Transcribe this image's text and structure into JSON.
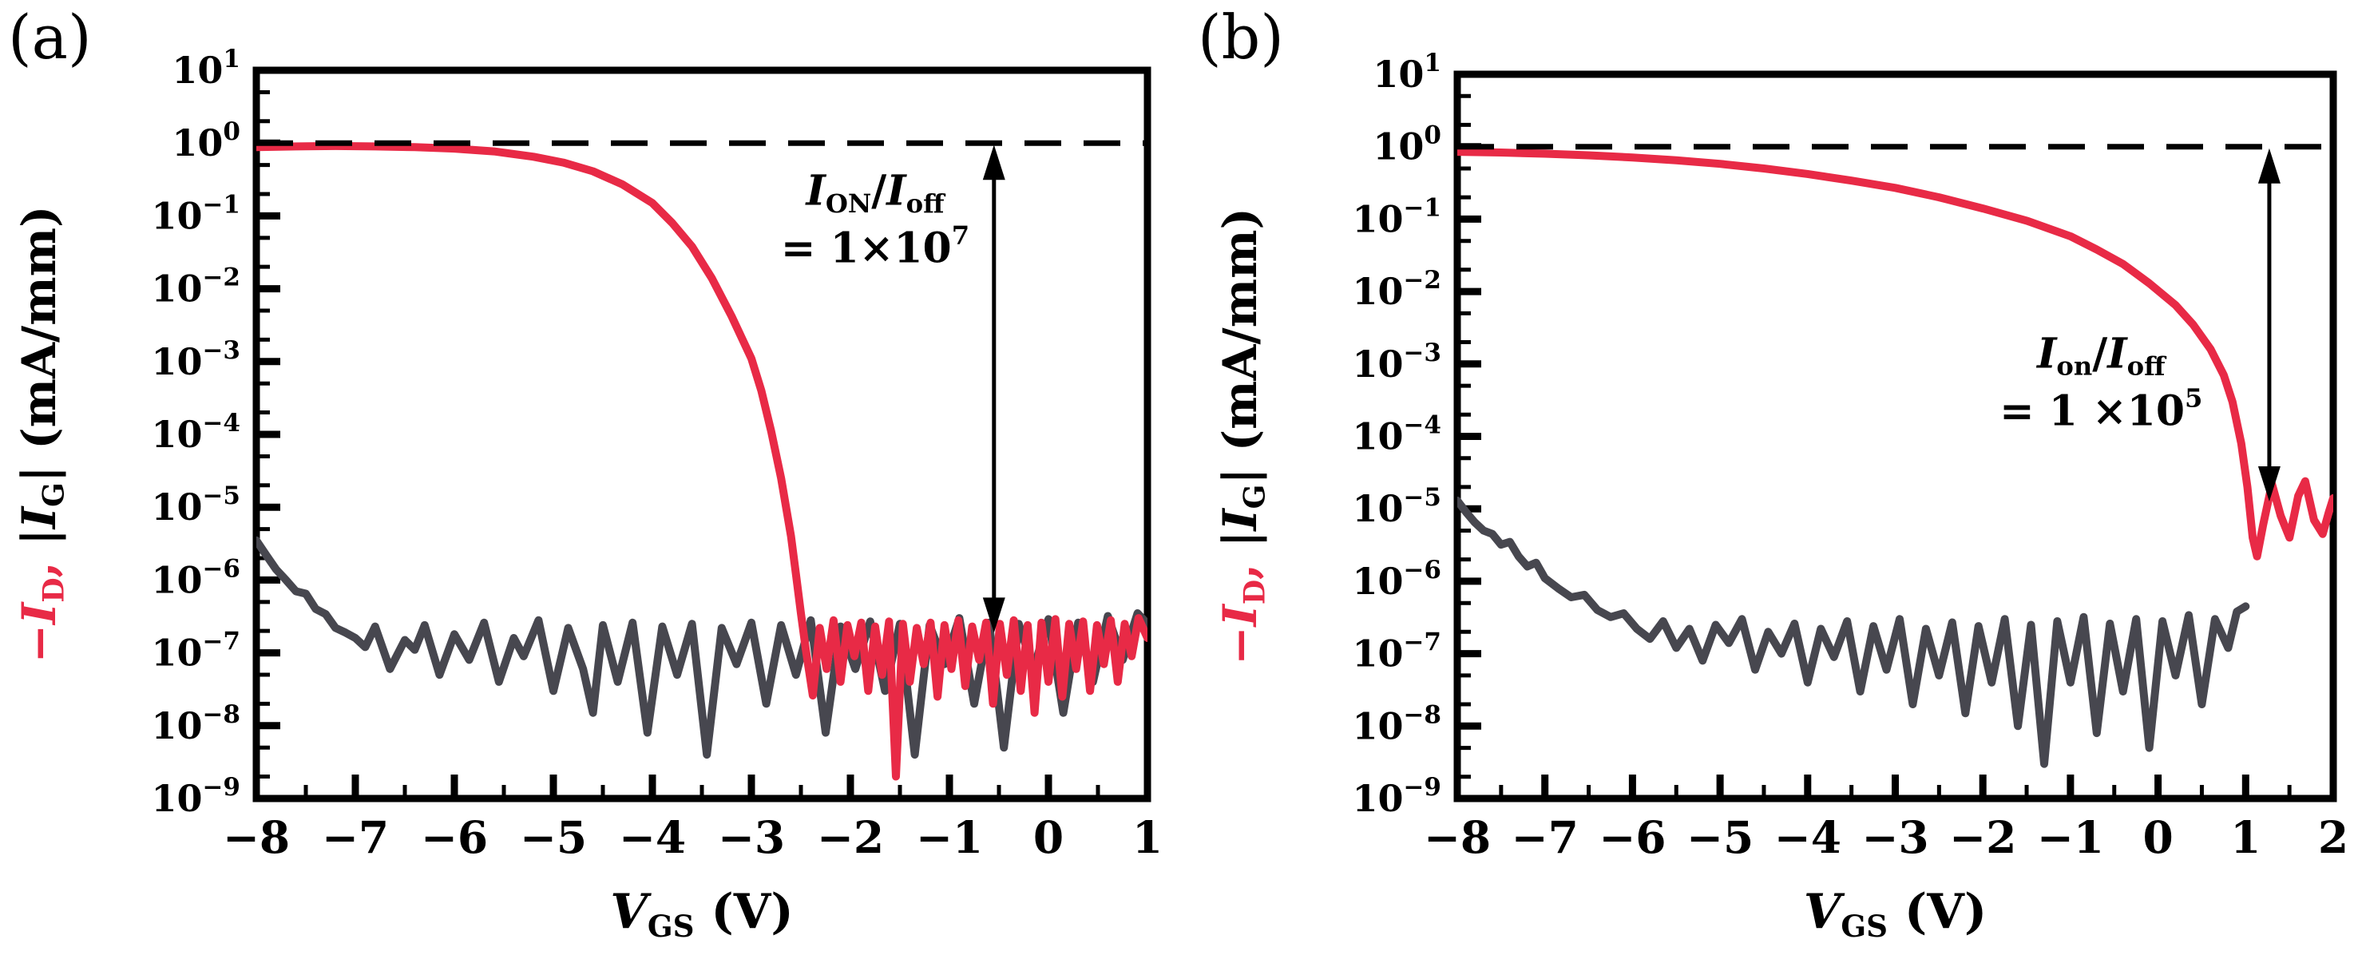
{
  "figure": {
    "background": "#ffffff",
    "axis_color": "#000000",
    "panel_labels": [
      "(a)",
      "(b)"
    ]
  },
  "chart_data": [
    {
      "type": "line",
      "panel_label": "(a)",
      "x_axis": {
        "title_segments": [
          {
            "t": "V",
            "i": 1
          },
          {
            "t": "GS",
            "sub": 1
          },
          {
            "t": " (V)"
          }
        ],
        "tick_labels": [
          "−8",
          "−7",
          "−6",
          "−5",
          "−4",
          "−3",
          "−2",
          "−1",
          "0",
          "1"
        ],
        "min": -8,
        "max": 1
      },
      "y_axis": {
        "title_segments": [
          {
            "t": "−",
            "c": "#e82a46"
          },
          {
            "t": "I",
            "i": 1,
            "c": "#e82a46"
          },
          {
            "t": "D",
            "sub": 1,
            "c": "#e82a46"
          },
          {
            "t": ",",
            "c": "#e82a46"
          },
          {
            "t": " |"
          },
          {
            "t": "I",
            "i": 1
          },
          {
            "t": "G",
            "sub": 1
          },
          {
            "t": "| (mA/mm)"
          }
        ],
        "scale": "log",
        "tick_labels": [
          "10^1",
          "10^0",
          "10^−1",
          "10^−2",
          "10^−3",
          "10^−4",
          "10^−5",
          "10^−6",
          "10^−7",
          "10^−8",
          "10^−9"
        ],
        "max_exp": 1,
        "min_exp": -9
      },
      "reference_line": {
        "value": 1,
        "style": "dashed",
        "color": "#000000"
      },
      "annotation": {
        "line1_segments": [
          {
            "t": "I",
            "i": 1
          },
          {
            "t": "ON",
            "sub": 1
          },
          {
            "t": "/"
          },
          {
            "t": "I",
            "i": 1
          },
          {
            "t": "off",
            "sub": 1
          }
        ],
        "line2_segments": [
          {
            "t": "= 1×10"
          },
          {
            "t": "7",
            "sup": 1
          }
        ],
        "text_x": -1.75,
        "text_y_exp": -0.85,
        "arrow_x": -0.55,
        "arrow_top": 1,
        "arrow_bottom": 1.8e-07
      },
      "series": [
        {
          "name": "gate-current",
          "label": "|IG|",
          "color": "#47474f",
          "x": [
            -8,
            -7.9,
            -7.8,
            -7.7,
            -7.6,
            -7.5,
            -7.4,
            -7.3,
            -7.2,
            -7.1,
            -7,
            -6.9,
            -6.8,
            -6.65,
            -6.5,
            -6.4,
            -6.3,
            -6.15,
            -6,
            -5.85,
            -5.7,
            -5.55,
            -5.4,
            -5.3,
            -5.15,
            -5,
            -4.85,
            -4.7,
            -4.6,
            -4.5,
            -4.35,
            -4.2,
            -4.05,
            -3.9,
            -3.75,
            -3.6,
            -3.45,
            -3.3,
            -3.15,
            -3,
            -2.85,
            -2.7,
            -2.55,
            -2.4,
            -2.25,
            -2.1,
            -1.95,
            -1.8,
            -1.65,
            -1.5,
            -1.35,
            -1.2,
            -1.05,
            -0.9,
            -0.75,
            -0.6,
            -0.45,
            -0.3,
            -0.15,
            0,
            0.15,
            0.3,
            0.45,
            0.6,
            0.75,
            0.9,
            1
          ],
          "y": [
            3.5e-06,
            2.2e-06,
            1.4e-06,
            1e-06,
            7e-07,
            6.5e-07,
            4e-07,
            3.4e-07,
            2.2e-07,
            1.9e-07,
            1.6e-07,
            1.2e-07,
            2.3e-07,
            6e-08,
            1.5e-07,
            1.1e-07,
            2.4e-07,
            5e-08,
            1.8e-07,
            8e-08,
            2.6e-07,
            4e-08,
            1.6e-07,
            9e-08,
            2.8e-07,
            3e-08,
            2.2e-07,
            6e-08,
            1.5e-08,
            2.4e-07,
            4e-08,
            2.6e-07,
            8e-09,
            2.3e-07,
            5e-08,
            2.5e-07,
            4e-09,
            2.2e-07,
            7e-08,
            2.6e-07,
            2e-08,
            2.4e-07,
            5e-08,
            2.8e-07,
            8e-09,
            2.3e-07,
            6e-08,
            2.7e-07,
            3e-08,
            2.5e-07,
            4e-09,
            2.4e-07,
            7e-08,
            3e-07,
            2e-08,
            2.6e-07,
            5e-09,
            2.5e-07,
            6e-08,
            2.9e-07,
            1.5e-08,
            2.6e-07,
            4e-08,
            3.2e-07,
            8e-08,
            3.5e-07,
            2.5e-07
          ]
        },
        {
          "name": "drain-current",
          "label": "−ID",
          "color": "#e82a46",
          "x": [
            -8,
            -7.6,
            -7.2,
            -6.8,
            -6.4,
            -6,
            -5.6,
            -5.2,
            -4.9,
            -4.6,
            -4.3,
            -4,
            -3.8,
            -3.6,
            -3.4,
            -3.2,
            -3,
            -2.9,
            -2.8,
            -2.7,
            -2.6,
            -2.55,
            -2.5,
            -2.45,
            -2.38,
            -2.31,
            -2.24,
            -2.17,
            -2.1,
            -2.03,
            -1.96,
            -1.89,
            -1.82,
            -1.75,
            -1.68,
            -1.61,
            -1.54,
            -1.47,
            -1.4,
            -1.33,
            -1.26,
            -1.19,
            -1.12,
            -1.05,
            -0.98,
            -0.91,
            -0.84,
            -0.77,
            -0.7,
            -0.63,
            -0.56,
            -0.49,
            -0.42,
            -0.35,
            -0.28,
            -0.21,
            -0.14,
            -0.07,
            0,
            0.07,
            0.14,
            0.21,
            0.28,
            0.35,
            0.42,
            0.49,
            0.56,
            0.63,
            0.7,
            0.77,
            0.84,
            0.91,
            1
          ],
          "y": [
            0.88,
            0.9,
            0.91,
            0.9,
            0.88,
            0.84,
            0.77,
            0.65,
            0.54,
            0.41,
            0.27,
            0.15,
            0.08,
            0.038,
            0.014,
            0.0042,
            0.0011,
            0.0004,
            0.00011,
            2.5e-05,
            4e-06,
            1.2e-06,
            3.5e-07,
            1.1e-07,
            2.6e-08,
            2.2e-07,
            6e-08,
            2.8e-07,
            4e-08,
            2.4e-07,
            9e-08,
            2.6e-07,
            3e-08,
            2.3e-07,
            5e-08,
            2.7e-07,
            2e-09,
            2.5e-07,
            4e-08,
            2.2e-07,
            7e-08,
            2.6e-07,
            2.5e-08,
            2.4e-07,
            6e-08,
            2.8e-07,
            3.5e-08,
            2.3e-07,
            8e-08,
            2.6e-07,
            2e-08,
            2.5e-07,
            5e-08,
            2.8e-07,
            3e-08,
            2.4e-07,
            1.5e-08,
            2.6e-07,
            4e-08,
            2.9e-07,
            2.5e-08,
            2.5e-07,
            6e-08,
            2.7e-07,
            3e-08,
            2.4e-07,
            7e-08,
            2.8e-07,
            4e-08,
            2.5e-07,
            9e-08,
            3e-07,
            1.6e-07
          ]
        }
      ]
    },
    {
      "type": "line",
      "panel_label": "(b)",
      "x_axis": {
        "title_segments": [
          {
            "t": "V",
            "i": 1
          },
          {
            "t": "GS",
            "sub": 1
          },
          {
            "t": " (V)"
          }
        ],
        "tick_labels": [
          "−8",
          "−7",
          "−6",
          "−5",
          "−4",
          "−3",
          "−2",
          "−1",
          "0",
          "1",
          "2"
        ],
        "min": -8,
        "max": 2
      },
      "y_axis": {
        "title_segments": [
          {
            "t": "−",
            "c": "#e82a46"
          },
          {
            "t": "I",
            "i": 1,
            "c": "#e82a46"
          },
          {
            "t": "D",
            "sub": 1,
            "c": "#e82a46"
          },
          {
            "t": ",",
            "c": "#e82a46"
          },
          {
            "t": " |"
          },
          {
            "t": "I",
            "i": 1
          },
          {
            "t": "G",
            "sub": 1
          },
          {
            "t": "| (mA/mm)"
          }
        ],
        "scale": "log",
        "tick_labels": [
          "10^1",
          "10^0",
          "10^−1",
          "10^−2",
          "10^−3",
          "10^−4",
          "10^−5",
          "10^−6",
          "10^−7",
          "10^−8",
          "10^−9"
        ],
        "max_exp": 1,
        "min_exp": -9
      },
      "reference_line": {
        "value": 1,
        "style": "dashed",
        "color": "#000000"
      },
      "annotation": {
        "line1_segments": [
          {
            "t": "I",
            "i": 1
          },
          {
            "t": "on",
            "sub": 1
          },
          {
            "t": "/"
          },
          {
            "t": "I",
            "i": 1
          },
          {
            "t": "off",
            "sub": 1
          }
        ],
        "line2_segments": [
          {
            "t": "= 1 ×10"
          },
          {
            "t": "5",
            "sup": 1
          }
        ],
        "text_x": -0.65,
        "text_y_exp": -3.05,
        "arrow_x": 1.27,
        "arrow_top": 1,
        "arrow_bottom": 1.2e-05
      },
      "series": [
        {
          "name": "gate-current",
          "label": "|IG|",
          "color": "#47474f",
          "x": [
            -8,
            -7.9,
            -7.8,
            -7.7,
            -7.6,
            -7.5,
            -7.4,
            -7.3,
            -7.2,
            -7.1,
            -7,
            -6.85,
            -6.7,
            -6.55,
            -6.4,
            -6.25,
            -6.1,
            -5.95,
            -5.8,
            -5.65,
            -5.5,
            -5.35,
            -5.2,
            -5.05,
            -4.9,
            -4.75,
            -4.6,
            -4.45,
            -4.3,
            -4.15,
            -4,
            -3.85,
            -3.7,
            -3.55,
            -3.4,
            -3.25,
            -3.1,
            -2.95,
            -2.8,
            -2.65,
            -2.5,
            -2.35,
            -2.2,
            -2.05,
            -1.9,
            -1.75,
            -1.6,
            -1.45,
            -1.3,
            -1.15,
            -1,
            -0.85,
            -0.7,
            -0.55,
            -0.4,
            -0.25,
            -0.1,
            0.05,
            0.2,
            0.35,
            0.5,
            0.65,
            0.8,
            0.9,
            1
          ],
          "y": [
            1.3e-05,
            9e-06,
            6.5e-06,
            5e-06,
            4.5e-06,
            3.2e-06,
            3.5e-06,
            2.2e-06,
            1.6e-06,
            1.8e-06,
            1.1e-06,
            8e-07,
            6e-07,
            6.5e-07,
            4e-07,
            3.2e-07,
            3.6e-07,
            2.2e-07,
            1.6e-07,
            2.8e-07,
            1.2e-07,
            2.2e-07,
            8e-08,
            2.5e-07,
            1.4e-07,
            3e-07,
            6e-08,
            2e-07,
            1e-07,
            2.6e-07,
            4e-08,
            2.2e-07,
            9e-08,
            2.8e-07,
            3e-08,
            2.4e-07,
            6e-08,
            3e-07,
            2e-08,
            2.2e-07,
            5e-08,
            2.7e-07,
            1.5e-08,
            2.4e-07,
            4e-08,
            3e-07,
            1e-08,
            2.5e-07,
            3e-09,
            2.8e-07,
            4e-08,
            3.2e-07,
            8e-09,
            2.6e-07,
            3e-08,
            3e-07,
            5e-09,
            2.8e-07,
            5e-08,
            3.4e-07,
            2e-08,
            3e-07,
            1.2e-07,
            3.8e-07,
            4.5e-07
          ]
        },
        {
          "name": "drain-current",
          "label": "−ID",
          "color": "#e82a46",
          "x": [
            -8,
            -7.5,
            -7,
            -6.5,
            -6,
            -5.5,
            -5,
            -4.5,
            -4,
            -3.5,
            -3,
            -2.5,
            -2,
            -1.5,
            -1,
            -0.7,
            -0.4,
            -0.1,
            0.2,
            0.4,
            0.6,
            0.75,
            0.85,
            0.95,
            1.02,
            1.08,
            1.13,
            1.2,
            1.3,
            1.4,
            1.5,
            1.6,
            1.68,
            1.78,
            1.88,
            1.95,
            2
          ],
          "y": [
            0.85,
            0.83,
            0.8,
            0.76,
            0.71,
            0.65,
            0.58,
            0.5,
            0.42,
            0.34,
            0.27,
            0.2,
            0.14,
            0.095,
            0.058,
            0.038,
            0.024,
            0.013,
            0.0065,
            0.0035,
            0.0016,
            0.0007,
            0.0003,
            8e-05,
            2e-05,
            4e-06,
            2.2e-06,
            6e-06,
            2.2e-05,
            8e-06,
            4e-06,
            1.5e-05,
            2.4e-05,
            7e-06,
            4.5e-06,
            9e-06,
            1.4e-05
          ]
        }
      ]
    }
  ]
}
